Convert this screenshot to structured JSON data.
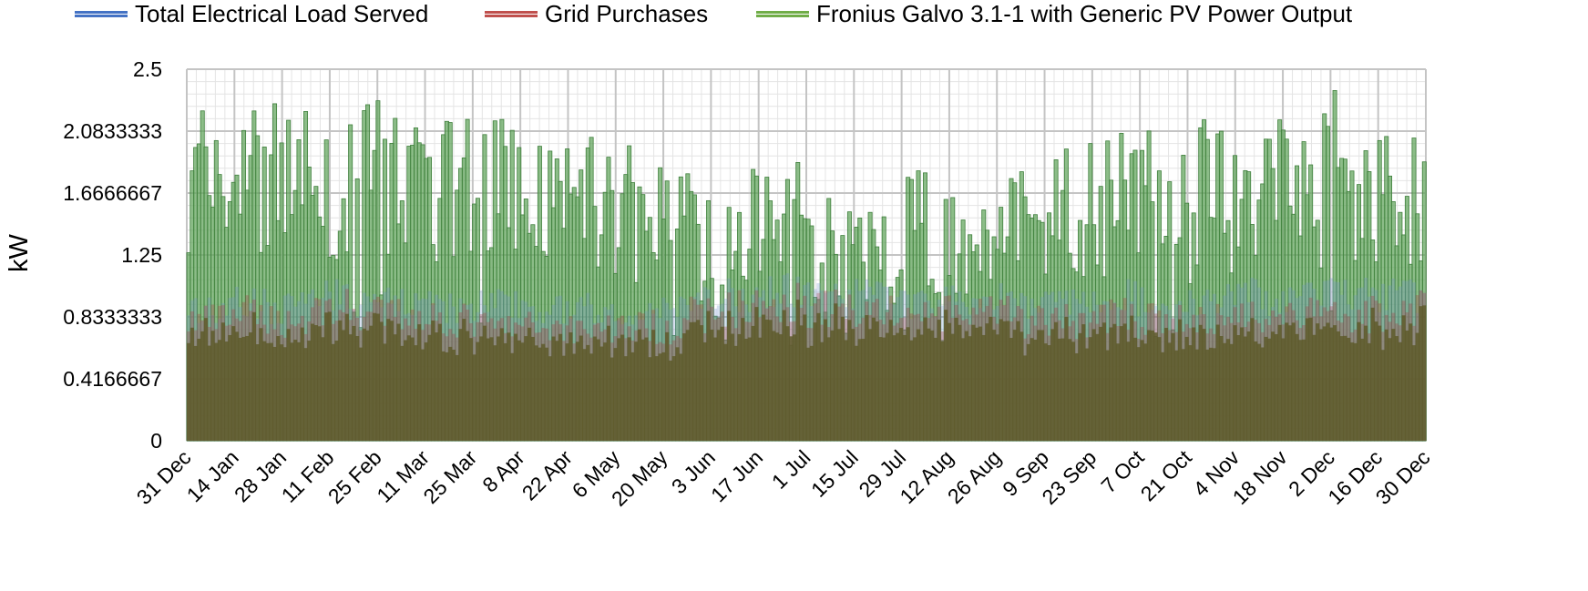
{
  "legend": {
    "items": [
      {
        "label": "Total Electrical Load Served",
        "color": "#4472c4"
      },
      {
        "label": "Grid Purchases",
        "color": "#c0504d"
      },
      {
        "label": "Fronius Galvo 3.1-1 with Generic PV Power Output",
        "color": "#70ad47"
      }
    ]
  },
  "chart_data": {
    "type": "area",
    "title": "",
    "xlabel": "",
    "ylabel": "kW",
    "ylim": [
      0,
      2.5
    ],
    "yticks": [
      {
        "value": 0,
        "label": "0"
      },
      {
        "value": 0.4166667,
        "label": "0.4166667"
      },
      {
        "value": 0.8333333,
        "label": "0.8333333"
      },
      {
        "value": 1.25,
        "label": "1.25"
      },
      {
        "value": 1.6666667,
        "label": "1.6666667"
      },
      {
        "value": 2.0833333,
        "label": "2.0833333"
      },
      {
        "value": 2.5,
        "label": "2.5"
      }
    ],
    "xticks": [
      "31 Dec",
      "14 Jan",
      "28 Jan",
      "11 Feb",
      "25 Feb",
      "11 Mar",
      "25 Mar",
      "8 Apr",
      "22 Apr",
      "6 May",
      "20 May",
      "3 Jun",
      "17 Jun",
      "1 Jul",
      "15 Jul",
      "29 Jul",
      "12 Aug",
      "26 Aug",
      "9 Sep",
      "23 Sep",
      "7 Oct",
      "21 Oct",
      "4 Nov",
      "18 Nov",
      "2 Dec",
      "16 Dec",
      "30 Dec"
    ],
    "grid": true,
    "legend_position": "top",
    "series": [
      {
        "name": "Fronius Galvo 3.1-1 with Generic PV Power Output",
        "color": "#70ad47",
        "period_values": [
          2.3,
          2.3,
          2.3,
          2.2,
          2.3,
          2.3,
          2.2,
          2.3,
          2.1,
          2.1,
          2.0,
          2.0,
          1.9,
          1.85,
          1.9,
          1.7,
          1.6,
          1.85,
          1.75,
          1.9,
          1.9,
          2.0,
          2.1,
          2.1,
          2.2,
          2.1,
          2.2,
          2.4,
          2.2,
          2.2
        ]
      },
      {
        "name": "Total Electrical Load Served",
        "color": "#4472c4",
        "period_values": [
          1.0,
          1.05,
          1.0,
          1.1,
          1.05,
          1.05,
          1.0,
          1.05,
          1.0,
          1.0,
          1.0,
          1.0,
          1.05,
          1.1,
          1.15,
          1.1,
          1.1,
          1.05,
          1.05,
          1.1,
          1.05,
          1.05,
          1.1,
          1.05,
          1.05,
          1.1,
          1.05,
          1.1,
          1.1,
          1.1
        ]
      },
      {
        "name": "Grid Purchases",
        "color": "#c0504d",
        "period_values": [
          0.95,
          1.0,
          0.95,
          1.05,
          1.0,
          1.0,
          0.95,
          0.9,
          0.9,
          0.9,
          0.9,
          0.9,
          1.0,
          1.05,
          1.1,
          1.05,
          1.05,
          1.0,
          1.0,
          1.0,
          0.95,
          0.95,
          1.0,
          0.95,
          0.95,
          1.0,
          1.0,
          1.0,
          1.0,
          1.05
        ]
      }
    ]
  }
}
